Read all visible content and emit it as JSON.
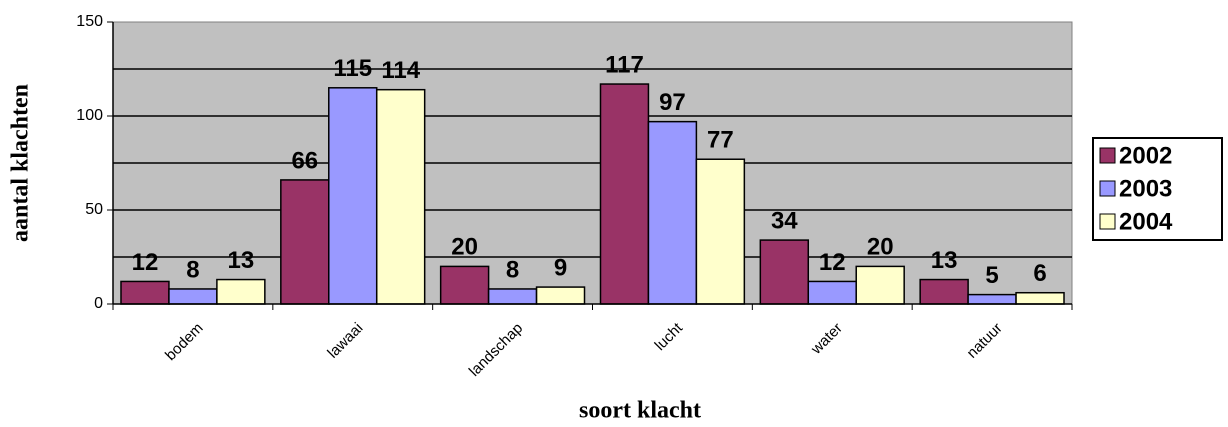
{
  "chart_data": {
    "type": "bar",
    "x_label": "soort klacht",
    "y_label": "aantal klachten",
    "categories": [
      "bodem",
      "lawaai",
      "landschap",
      "lucht",
      "water",
      "natuur"
    ],
    "series": [
      {
        "name": "2002",
        "color": "#993366",
        "values": [
          12,
          66,
          20,
          117,
          34,
          13
        ]
      },
      {
        "name": "2003",
        "color": "#9999ff",
        "values": [
          8,
          115,
          8,
          97,
          12,
          5
        ]
      },
      {
        "name": "2004",
        "color": "#ffffcc",
        "values": [
          13,
          114,
          9,
          77,
          20,
          6
        ]
      }
    ],
    "ylim": [
      0,
      150
    ],
    "yticks": [
      0,
      50,
      100,
      150
    ],
    "ygrid": [
      25,
      50,
      75,
      100,
      125
    ],
    "grid": true,
    "legend": "right",
    "background": "#c0c0c0"
  }
}
